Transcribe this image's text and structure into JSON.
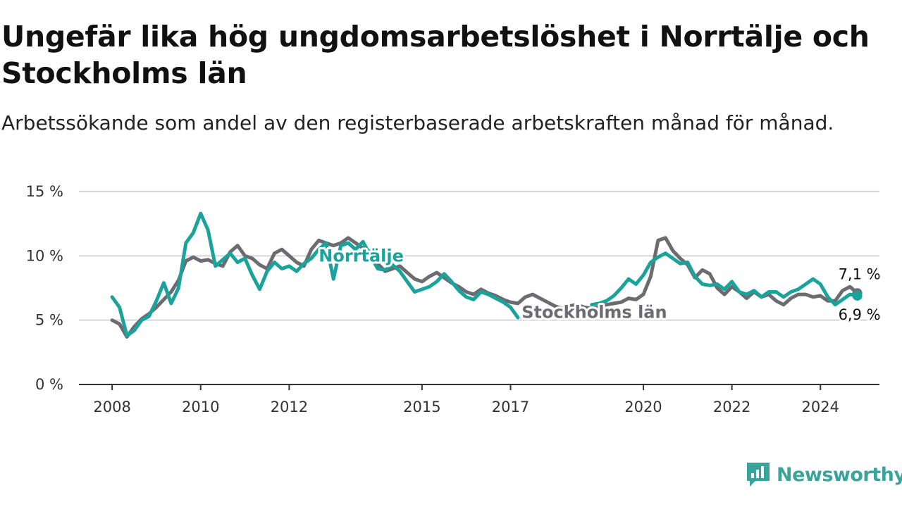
{
  "header": {
    "title": "Ungefär lika hög ungdomsarbetslöshet i Norrtälje och Stockholms län",
    "subtitle": "Arbetssökande som andel av den registerbaserade arbetskraften månad för månad."
  },
  "brand": {
    "name": "Newsworthy",
    "color": "#3aa39a"
  },
  "chart_data": {
    "type": "line",
    "title": "Ungefär lika hög ungdomsarbetslöshet i Norrtälje och Stockholms län",
    "subtitle": "Arbetssökande som andel av den registerbaserade arbetskraften månad för månad.",
    "xlabel": "",
    "ylabel": "",
    "ylim": [
      0,
      15
    ],
    "xlim": [
      "2007-04",
      "2025-05"
    ],
    "y_ticks": [
      {
        "value": 0,
        "label": "0 %"
      },
      {
        "value": 5,
        "label": "5 %"
      },
      {
        "value": 10,
        "label": "10 %"
      },
      {
        "value": 15,
        "label": "15 %"
      }
    ],
    "x_ticks": [
      {
        "value": "2008-01",
        "label": "2008"
      },
      {
        "value": "2010-01",
        "label": "2010"
      },
      {
        "value": "2012-01",
        "label": "2012"
      },
      {
        "value": "2015-01",
        "label": "2015"
      },
      {
        "value": "2017-01",
        "label": "2017"
      },
      {
        "value": "2020-01",
        "label": "2020"
      },
      {
        "value": "2022-01",
        "label": "2022"
      },
      {
        "value": "2024-01",
        "label": "2024"
      }
    ],
    "grid": true,
    "legend": "inline labels",
    "series": [
      {
        "name": "Stockholms län",
        "color": "#6b6b72",
        "points": [
          [
            "2008-01",
            5.0
          ],
          [
            "2008-03",
            4.7
          ],
          [
            "2008-05",
            3.7
          ],
          [
            "2008-07",
            4.5
          ],
          [
            "2008-09",
            5.1
          ],
          [
            "2008-11",
            5.5
          ],
          [
            "2009-01",
            6.0
          ],
          [
            "2009-03",
            6.6
          ],
          [
            "2009-05",
            7.2
          ],
          [
            "2009-07",
            8.1
          ],
          [
            "2009-09",
            9.6
          ],
          [
            "2009-11",
            9.9
          ],
          [
            "2010-01",
            9.6
          ],
          [
            "2010-03",
            9.7
          ],
          [
            "2010-05",
            9.4
          ],
          [
            "2010-07",
            9.2
          ],
          [
            "2010-09",
            10.3
          ],
          [
            "2010-11",
            10.8
          ],
          [
            "2011-01",
            10.0
          ],
          [
            "2011-03",
            9.8
          ],
          [
            "2011-05",
            9.3
          ],
          [
            "2011-07",
            9.0
          ],
          [
            "2011-09",
            10.2
          ],
          [
            "2011-11",
            10.5
          ],
          [
            "2012-01",
            10.0
          ],
          [
            "2012-03",
            9.5
          ],
          [
            "2012-05",
            9.2
          ],
          [
            "2012-07",
            10.5
          ],
          [
            "2012-09",
            11.2
          ],
          [
            "2012-11",
            11.0
          ],
          [
            "2013-01",
            10.8
          ],
          [
            "2013-03",
            11.0
          ],
          [
            "2013-05",
            11.4
          ],
          [
            "2013-07",
            11.0
          ],
          [
            "2013-09",
            10.6
          ],
          [
            "2013-11",
            10.3
          ],
          [
            "2014-01",
            9.4
          ],
          [
            "2014-03",
            8.8
          ],
          [
            "2014-05",
            9.0
          ],
          [
            "2014-07",
            9.2
          ],
          [
            "2014-09",
            8.7
          ],
          [
            "2014-11",
            8.2
          ],
          [
            "2015-01",
            8.0
          ],
          [
            "2015-03",
            8.4
          ],
          [
            "2015-05",
            8.7
          ],
          [
            "2015-07",
            8.3
          ],
          [
            "2015-09",
            7.9
          ],
          [
            "2015-11",
            7.6
          ],
          [
            "2016-01",
            7.2
          ],
          [
            "2016-03",
            7.0
          ],
          [
            "2016-05",
            7.4
          ],
          [
            "2016-07",
            7.1
          ],
          [
            "2016-09",
            6.9
          ],
          [
            "2016-11",
            6.6
          ],
          [
            "2017-01",
            6.4
          ],
          [
            "2017-03",
            6.3
          ],
          [
            "2017-05",
            6.8
          ],
          [
            "2017-07",
            7.0
          ],
          [
            "2017-09",
            6.7
          ],
          [
            "2017-11",
            6.4
          ],
          [
            "2018-01",
            6.1
          ],
          [
            "2018-03",
            5.9
          ],
          [
            "2018-05",
            6.1
          ],
          [
            "2018-07",
            6.2
          ],
          [
            "2018-09",
            6.0
          ],
          [
            "2018-11",
            5.9
          ],
          [
            "2019-01",
            6.0
          ],
          [
            "2019-03",
            6.2
          ],
          [
            "2019-05",
            6.3
          ],
          [
            "2019-07",
            6.4
          ],
          [
            "2019-09",
            6.7
          ],
          [
            "2019-11",
            6.6
          ],
          [
            "2020-01",
            7.0
          ],
          [
            "2020-03",
            8.4
          ],
          [
            "2020-05",
            11.2
          ],
          [
            "2020-07",
            11.4
          ],
          [
            "2020-09",
            10.4
          ],
          [
            "2020-11",
            9.8
          ],
          [
            "2021-01",
            9.3
          ],
          [
            "2021-03",
            8.3
          ],
          [
            "2021-05",
            8.9
          ],
          [
            "2021-07",
            8.6
          ],
          [
            "2021-09",
            7.5
          ],
          [
            "2021-11",
            7.0
          ],
          [
            "2022-01",
            7.6
          ],
          [
            "2022-03",
            7.2
          ],
          [
            "2022-05",
            6.7
          ],
          [
            "2022-07",
            7.2
          ],
          [
            "2022-09",
            6.8
          ],
          [
            "2022-11",
            7.0
          ],
          [
            "2023-01",
            6.5
          ],
          [
            "2023-03",
            6.2
          ],
          [
            "2023-05",
            6.7
          ],
          [
            "2023-07",
            7.0
          ],
          [
            "2023-09",
            7.0
          ],
          [
            "2023-11",
            6.8
          ],
          [
            "2024-01",
            6.9
          ],
          [
            "2024-03",
            6.5
          ],
          [
            "2024-05",
            6.5
          ],
          [
            "2024-07",
            7.3
          ],
          [
            "2024-09",
            7.6
          ],
          [
            "2024-11",
            7.1
          ]
        ]
      },
      {
        "name": "Norrtälje",
        "color": "#1aa39a",
        "points": [
          [
            "2008-01",
            6.8
          ],
          [
            "2008-03",
            6.0
          ],
          [
            "2008-05",
            3.8
          ],
          [
            "2008-07",
            4.2
          ],
          [
            "2008-09",
            5.0
          ],
          [
            "2008-11",
            5.3
          ],
          [
            "2009-01",
            6.5
          ],
          [
            "2009-03",
            7.9
          ],
          [
            "2009-05",
            6.3
          ],
          [
            "2009-07",
            7.5
          ],
          [
            "2009-09",
            11.0
          ],
          [
            "2009-11",
            11.8
          ],
          [
            "2010-01",
            13.3
          ],
          [
            "2010-03",
            12.0
          ],
          [
            "2010-05",
            9.2
          ],
          [
            "2010-07",
            9.7
          ],
          [
            "2010-09",
            10.2
          ],
          [
            "2010-11",
            9.5
          ],
          [
            "2011-01",
            9.8
          ],
          [
            "2011-03",
            8.5
          ],
          [
            "2011-05",
            7.4
          ],
          [
            "2011-07",
            8.8
          ],
          [
            "2011-09",
            9.5
          ],
          [
            "2011-11",
            9.0
          ],
          [
            "2012-01",
            9.2
          ],
          [
            "2012-03",
            8.8
          ],
          [
            "2012-05",
            9.4
          ],
          [
            "2012-07",
            9.8
          ],
          [
            "2012-09",
            10.5
          ],
          [
            "2012-11",
            11.0
          ],
          [
            "2013-01",
            8.2
          ],
          [
            "2013-03",
            10.8
          ],
          [
            "2013-05",
            11.0
          ],
          [
            "2013-07",
            10.5
          ],
          [
            "2013-09",
            11.1
          ],
          [
            "2013-11",
            10.0
          ],
          [
            "2014-01",
            9.0
          ],
          [
            "2014-03",
            8.9
          ],
          [
            "2014-05",
            9.3
          ],
          [
            "2014-07",
            8.8
          ],
          [
            "2014-09",
            8.0
          ],
          [
            "2014-11",
            7.2
          ],
          [
            "2015-01",
            7.4
          ],
          [
            "2015-03",
            7.6
          ],
          [
            "2015-05",
            8.0
          ],
          [
            "2015-07",
            8.6
          ],
          [
            "2015-09",
            8.0
          ],
          [
            "2015-11",
            7.3
          ],
          [
            "2016-01",
            6.8
          ],
          [
            "2016-03",
            6.6
          ],
          [
            "2016-05",
            7.2
          ],
          [
            "2016-07",
            7.0
          ],
          [
            "2016-09",
            6.7
          ],
          [
            "2016-11",
            6.4
          ],
          [
            "2017-01",
            6.0
          ],
          [
            "2017-03",
            5.2
          ],
          [
            "2017-05",
            null
          ],
          [
            "2018-11",
            6.2
          ],
          [
            "2019-01",
            6.3
          ],
          [
            "2019-03",
            6.5
          ],
          [
            "2019-05",
            6.9
          ],
          [
            "2019-07",
            7.5
          ],
          [
            "2019-09",
            8.2
          ],
          [
            "2019-11",
            7.8
          ],
          [
            "2020-01",
            8.5
          ],
          [
            "2020-03",
            9.5
          ],
          [
            "2020-05",
            9.9
          ],
          [
            "2020-07",
            10.2
          ],
          [
            "2020-09",
            9.8
          ],
          [
            "2020-11",
            9.4
          ],
          [
            "2021-01",
            9.5
          ],
          [
            "2021-03",
            8.4
          ],
          [
            "2021-05",
            7.8
          ],
          [
            "2021-07",
            7.7
          ],
          [
            "2021-09",
            7.8
          ],
          [
            "2021-11",
            7.4
          ],
          [
            "2022-01",
            8.0
          ],
          [
            "2022-03",
            7.2
          ],
          [
            "2022-05",
            7.0
          ],
          [
            "2022-07",
            7.3
          ],
          [
            "2022-09",
            6.8
          ],
          [
            "2022-11",
            7.2
          ],
          [
            "2023-01",
            7.2
          ],
          [
            "2023-03",
            6.8
          ],
          [
            "2023-05",
            7.2
          ],
          [
            "2023-07",
            7.4
          ],
          [
            "2023-09",
            7.8
          ],
          [
            "2023-11",
            8.2
          ],
          [
            "2024-01",
            7.8
          ],
          [
            "2024-03",
            6.8
          ],
          [
            "2024-05",
            6.2
          ],
          [
            "2024-07",
            6.6
          ],
          [
            "2024-09",
            7.0
          ],
          [
            "2024-11",
            6.9
          ]
        ]
      }
    ],
    "series_labels": [
      {
        "series": "Norrtälje",
        "text": "Norrtälje",
        "x": "2012-09",
        "y": 10.0
      },
      {
        "series": "Stockholms län",
        "text": "Stockholms län",
        "x": "2017-04",
        "y": 5.6
      }
    ],
    "end_labels": [
      {
        "series": "Stockholms län",
        "text": "7,1 %",
        "x": "2024-11",
        "y": 7.1
      },
      {
        "series": "Norrtälje",
        "text": "6,9 %",
        "x": "2024-11",
        "y": 6.9
      }
    ]
  }
}
